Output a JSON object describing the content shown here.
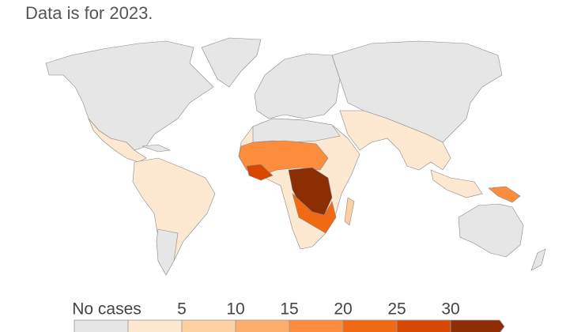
{
  "subtitle": "Data is for 2023.",
  "legend": {
    "no_data_label": "No cases",
    "no_data_color": "#e6e6e6",
    "thresholds": [
      5,
      10,
      15,
      20,
      25,
      30
    ],
    "colors": [
      "#fde8d2",
      "#fdd0a2",
      "#fdae6b",
      "#fd8d3c",
      "#f16913",
      "#d94801",
      "#8c2d04"
    ]
  }
}
